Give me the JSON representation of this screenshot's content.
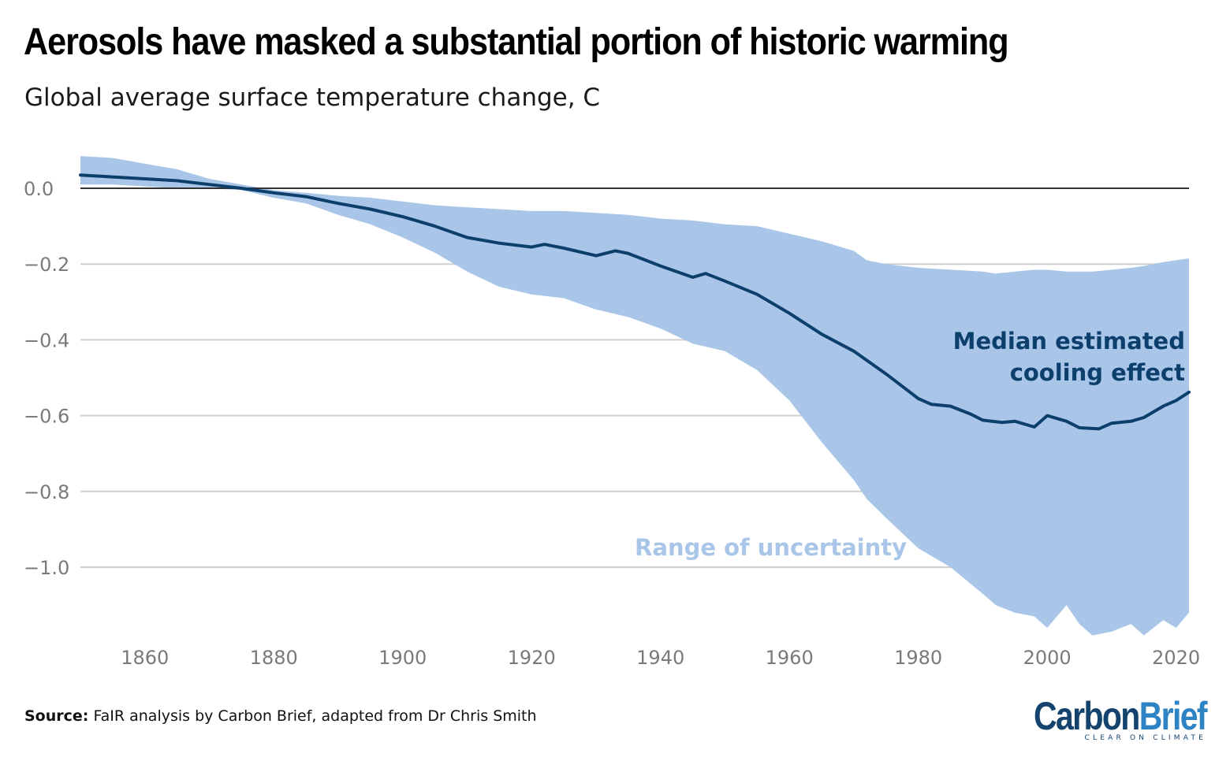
{
  "title": "Aerosols have masked a substantial portion of historic warming",
  "subtitle": "Global average surface temperature change, C",
  "source_label": "Source:",
  "source_text": "FaIR analysis by Carbon Brief, adapted from Dr Chris Smith",
  "logo": {
    "carbon": "Carbon",
    "brief": "Brief",
    "tagline": "CLEAR ON CLIMATE"
  },
  "colors": {
    "band": "#a9c6e8",
    "median": "#0d3f6d",
    "grid": "#cfcfcf",
    "zero": "#333333",
    "ticks": "#7a7a7a"
  },
  "chart_data": {
    "type": "area",
    "title": "Aerosols have masked a substantial portion of historic warming",
    "ylabel": "Global average surface temperature change, C",
    "xlabel": "",
    "xlim": [
      1850,
      2022
    ],
    "ylim": [
      -1.2,
      0.12
    ],
    "xticks": [
      1860,
      1880,
      1900,
      1920,
      1940,
      1960,
      1980,
      2000,
      2020
    ],
    "yticks": [
      0.0,
      -0.2,
      -0.4,
      -0.6,
      -0.8,
      -1.0
    ],
    "ytick_labels": [
      "0.0",
      "−0.2",
      "−0.4",
      "−0.6",
      "−0.8",
      "−1.0"
    ],
    "grid": true,
    "annotations": [
      {
        "text_lines": [
          "Median estimated",
          "cooling effect"
        ],
        "series": "Median estimated cooling effect"
      },
      {
        "text": "Range of uncertainty",
        "series": "Range of uncertainty"
      }
    ],
    "series": [
      {
        "name": "Median estimated cooling effect",
        "type": "line",
        "x": [
          1850,
          1855,
          1860,
          1865,
          1870,
          1875,
          1880,
          1885,
          1890,
          1895,
          1900,
          1905,
          1910,
          1915,
          1920,
          1922,
          1925,
          1930,
          1933,
          1935,
          1940,
          1945,
          1947,
          1950,
          1955,
          1960,
          1965,
          1970,
          1975,
          1980,
          1982,
          1985,
          1988,
          1990,
          1993,
          1995,
          1998,
          2000,
          2003,
          2005,
          2008,
          2010,
          2013,
          2015,
          2018,
          2020,
          2022
        ],
        "values": [
          0.035,
          0.03,
          0.025,
          0.02,
          0.01,
          0.0,
          -0.012,
          -0.022,
          -0.04,
          -0.055,
          -0.075,
          -0.1,
          -0.13,
          -0.145,
          -0.155,
          -0.148,
          -0.158,
          -0.178,
          -0.165,
          -0.172,
          -0.205,
          -0.235,
          -0.225,
          -0.245,
          -0.28,
          -0.33,
          -0.385,
          -0.43,
          -0.49,
          -0.555,
          -0.57,
          -0.575,
          -0.595,
          -0.612,
          -0.618,
          -0.615,
          -0.63,
          -0.6,
          -0.615,
          -0.632,
          -0.635,
          -0.62,
          -0.615,
          -0.605,
          -0.575,
          -0.56,
          -0.538
        ]
      },
      {
        "name": "Range of uncertainty",
        "type": "band",
        "x": [
          1850,
          1855,
          1860,
          1865,
          1870,
          1875,
          1880,
          1885,
          1890,
          1895,
          1900,
          1905,
          1910,
          1915,
          1920,
          1925,
          1930,
          1935,
          1940,
          1945,
          1950,
          1955,
          1960,
          1965,
          1970,
          1972,
          1975,
          1980,
          1985,
          1990,
          1992,
          1995,
          1998,
          2000,
          2003,
          2005,
          2007,
          2010,
          2013,
          2015,
          2018,
          2020,
          2022
        ],
        "upper": [
          0.085,
          0.08,
          0.065,
          0.05,
          0.025,
          0.01,
          -0.005,
          -0.012,
          -0.02,
          -0.025,
          -0.035,
          -0.045,
          -0.05,
          -0.055,
          -0.06,
          -0.06,
          -0.065,
          -0.07,
          -0.08,
          -0.085,
          -0.095,
          -0.1,
          -0.12,
          -0.14,
          -0.165,
          -0.19,
          -0.2,
          -0.21,
          -0.215,
          -0.22,
          -0.225,
          -0.22,
          -0.215,
          -0.215,
          -0.22,
          -0.22,
          -0.22,
          -0.215,
          -0.21,
          -0.205,
          -0.195,
          -0.19,
          -0.185
        ],
        "lower": [
          0.01,
          0.01,
          0.005,
          0.0,
          0.0,
          -0.005,
          -0.025,
          -0.04,
          -0.07,
          -0.095,
          -0.13,
          -0.17,
          -0.22,
          -0.26,
          -0.28,
          -0.29,
          -0.32,
          -0.34,
          -0.37,
          -0.41,
          -0.43,
          -0.48,
          -0.56,
          -0.67,
          -0.77,
          -0.82,
          -0.87,
          -0.95,
          -1.0,
          -1.07,
          -1.1,
          -1.12,
          -1.13,
          -1.16,
          -1.1,
          -1.15,
          -1.18,
          -1.17,
          -1.15,
          -1.18,
          -1.14,
          -1.16,
          -1.12
        ]
      }
    ]
  }
}
